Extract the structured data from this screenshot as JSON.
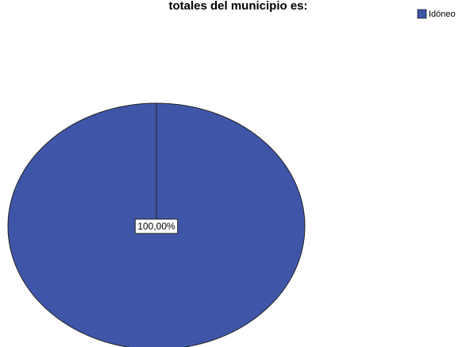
{
  "chart_data": {
    "type": "pie",
    "title": "totales del municipio es:",
    "categories": [
      "Idóneo"
    ],
    "values": [
      100
    ],
    "value_labels": [
      "100,00%"
    ],
    "colors": [
      "#3f56a8"
    ],
    "legend": "top-right"
  }
}
